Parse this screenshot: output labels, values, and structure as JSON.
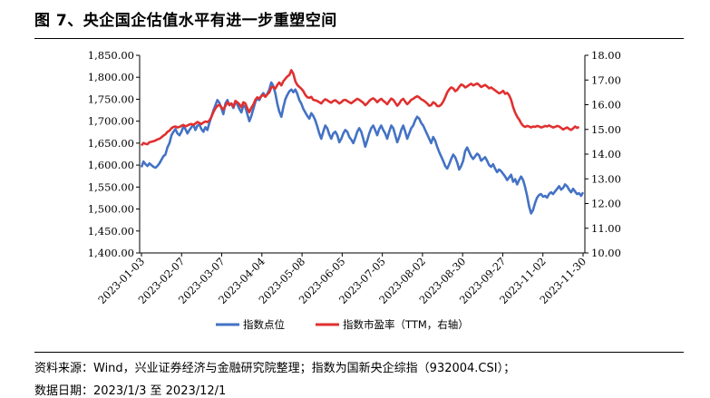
{
  "title": "图 7、央企国企估值水平有进一步重塑空间",
  "source_note": "资料来源：Wind，兴业证券经济与金融研究院整理；指数为国新央企综指（932004.CSI）；",
  "date_note": "数据日期：2023/1/3 至 2023/12/1",
  "chart_data": {
    "type": "line",
    "x_tick_labels": [
      "2023-01-03",
      "2023-02-07",
      "2023-03-07",
      "2023-04-04",
      "2023-05-08",
      "2023-06-05",
      "2023-07-05",
      "2023-08-02",
      "2023-08-30",
      "2023-09-27",
      "2023-11-02",
      "2023-11-30"
    ],
    "y_left": {
      "ticks": [
        "1,400.00",
        "1,450.00",
        "1,500.00",
        "1,550.00",
        "1,600.00",
        "1,650.00",
        "1,700.00",
        "1,750.00",
        "1,800.00",
        "1,850.00"
      ],
      "min": 1400,
      "max": 1850
    },
    "y_right": {
      "ticks": [
        "10.00",
        "11.00",
        "12.00",
        "13.00",
        "14.00",
        "15.00",
        "16.00",
        "17.00",
        "18.00"
      ],
      "min": 10,
      "max": 18
    },
    "series": [
      {
        "name": "指数点位",
        "axis": "left",
        "color": "#4472C4",
        "values": [
          1595,
          1608,
          1602,
          1598,
          1604,
          1600,
          1596,
          1594,
          1598,
          1604,
          1612,
          1620,
          1624,
          1640,
          1650,
          1668,
          1676,
          1682,
          1672,
          1668,
          1676,
          1688,
          1682,
          1672,
          1680,
          1686,
          1692,
          1680,
          1690,
          1692,
          1682,
          1676,
          1686,
          1680,
          1696,
          1710,
          1724,
          1736,
          1748,
          1742,
          1730,
          1716,
          1740,
          1748,
          1736,
          1740,
          1730,
          1744,
          1738,
          1728,
          1720,
          1736,
          1732,
          1716,
          1700,
          1712,
          1728,
          1744,
          1752,
          1748,
          1758,
          1764,
          1756,
          1762,
          1772,
          1788,
          1780,
          1764,
          1740,
          1722,
          1710,
          1732,
          1750,
          1760,
          1768,
          1772,
          1766,
          1772,
          1762,
          1748,
          1740,
          1728,
          1720,
          1712,
          1706,
          1718,
          1712,
          1702,
          1688,
          1672,
          1660,
          1676,
          1690,
          1684,
          1670,
          1660,
          1672,
          1676,
          1668,
          1652,
          1660,
          1672,
          1680,
          1676,
          1664,
          1658,
          1650,
          1662,
          1676,
          1684,
          1676,
          1660,
          1642,
          1656,
          1672,
          1684,
          1690,
          1680,
          1668,
          1682,
          1690,
          1680,
          1672,
          1660,
          1676,
          1690,
          1684,
          1668,
          1652,
          1664,
          1680,
          1690,
          1676,
          1660,
          1672,
          1684,
          1690,
          1702,
          1710,
          1706,
          1696,
          1690,
          1680,
          1670,
          1660,
          1650,
          1664,
          1656,
          1642,
          1630,
          1620,
          1610,
          1598,
          1592,
          1602,
          1614,
          1624,
          1618,
          1606,
          1590,
          1598,
          1610,
          1632,
          1640,
          1630,
          1620,
          1614,
          1620,
          1626,
          1622,
          1610,
          1614,
          1618,
          1610,
          1600,
          1596,
          1602,
          1592,
          1584,
          1590,
          1586,
          1580,
          1574,
          1566,
          1572,
          1578,
          1562,
          1568,
          1556,
          1566,
          1574,
          1566,
          1550,
          1530,
          1506,
          1490,
          1498,
          1514,
          1526,
          1532,
          1534,
          1528,
          1530,
          1526,
          1534,
          1538,
          1534,
          1540,
          1546,
          1552,
          1544,
          1548,
          1556,
          1552,
          1544,
          1538,
          1546,
          1540,
          1534,
          1536,
          1530,
          1538
        ]
      },
      {
        "name": "指数市盈率（TTM，右轴）",
        "axis": "right",
        "color": "#E03030",
        "values": [
          14.35,
          14.45,
          14.42,
          14.4,
          14.48,
          14.5,
          14.52,
          14.55,
          14.6,
          14.62,
          14.68,
          14.75,
          14.8,
          14.9,
          14.95,
          15.05,
          15.1,
          15.12,
          15.08,
          15.1,
          15.15,
          15.18,
          15.12,
          15.16,
          15.2,
          15.22,
          15.18,
          15.24,
          15.3,
          15.26,
          15.22,
          15.28,
          15.32,
          15.3,
          15.36,
          15.5,
          15.7,
          15.85,
          15.95,
          16.0,
          15.9,
          15.8,
          15.95,
          16.1,
          16.0,
          16.05,
          15.92,
          16.15,
          16.1,
          16.02,
          15.9,
          16.1,
          16.05,
          15.85,
          15.7,
          15.88,
          16.0,
          16.2,
          16.3,
          16.25,
          16.35,
          16.4,
          16.32,
          16.42,
          16.5,
          16.7,
          16.72,
          16.65,
          16.8,
          16.9,
          16.78,
          16.95,
          17.05,
          17.15,
          17.2,
          17.4,
          17.25,
          16.95,
          16.8,
          16.72,
          16.65,
          16.55,
          16.4,
          16.3,
          16.28,
          16.32,
          16.2,
          16.18,
          16.15,
          16.1,
          16.05,
          16.15,
          16.22,
          16.18,
          16.12,
          16.08,
          16.15,
          16.18,
          16.12,
          16.05,
          16.1,
          16.18,
          16.2,
          16.15,
          16.1,
          16.06,
          16.12,
          16.18,
          16.24,
          16.2,
          16.14,
          16.08,
          15.98,
          16.05,
          16.15,
          16.22,
          16.26,
          16.2,
          16.1,
          16.18,
          16.24,
          16.16,
          16.1,
          16.02,
          16.14,
          16.25,
          16.2,
          16.08,
          15.96,
          16.05,
          16.18,
          16.24,
          16.12,
          16.02,
          16.1,
          16.2,
          16.24,
          16.3,
          16.34,
          16.3,
          16.22,
          16.18,
          16.12,
          16.05,
          15.96,
          15.98,
          16.1,
          16.05,
          15.95,
          15.94,
          16.0,
          16.12,
          16.3,
          16.5,
          16.62,
          16.7,
          16.66,
          16.55,
          16.6,
          16.72,
          16.82,
          16.78,
          16.7,
          16.74,
          16.8,
          16.85,
          16.78,
          16.82,
          16.86,
          16.8,
          16.72,
          16.76,
          16.8,
          16.74,
          16.66,
          16.7,
          16.64,
          16.58,
          16.52,
          16.46,
          16.5,
          16.56,
          16.44,
          16.48,
          16.38,
          16.2,
          15.9,
          15.68,
          15.52,
          15.4,
          15.25,
          15.15,
          15.1,
          15.14,
          15.12,
          15.08,
          15.12,
          15.1,
          15.14,
          15.12,
          15.08,
          15.1,
          15.14,
          15.12,
          15.16,
          15.12,
          15.08,
          15.1,
          15.14,
          15.12,
          15.06,
          15.0,
          15.04,
          15.08,
          15.02,
          14.98,
          15.04,
          15.12,
          15.06,
          15.1
        ]
      }
    ],
    "legend_position": "bottom"
  }
}
